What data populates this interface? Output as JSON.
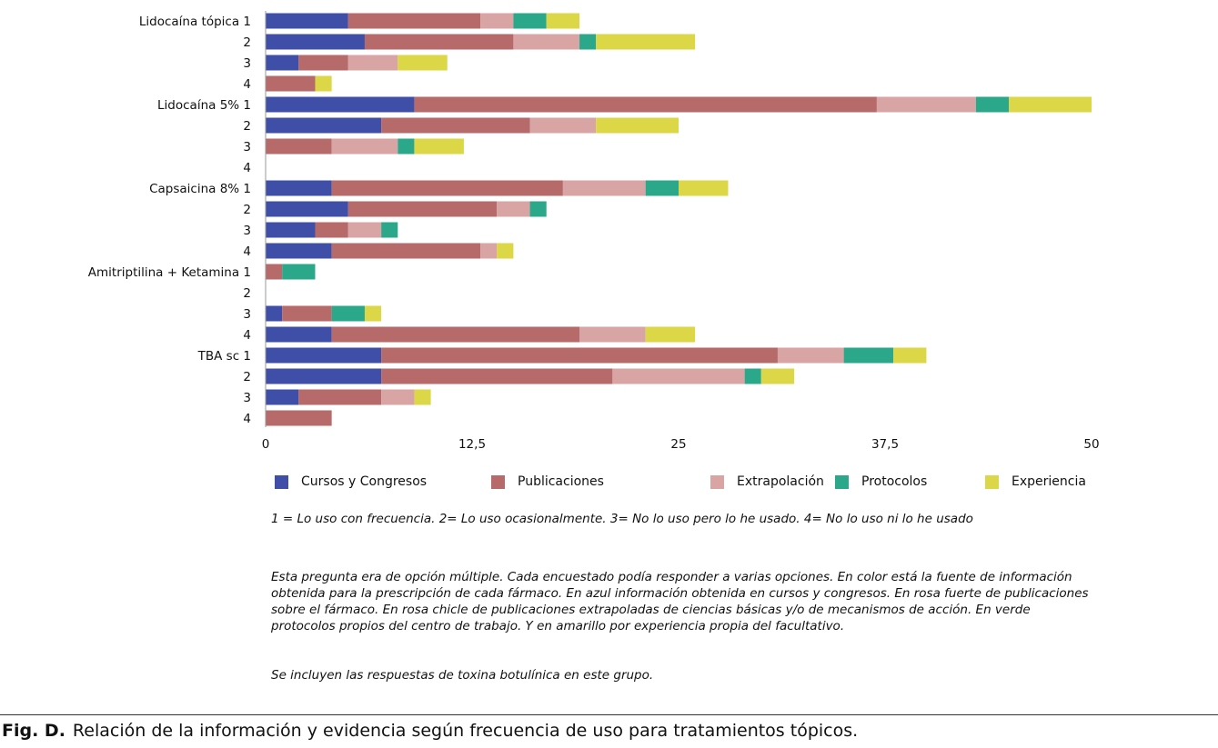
{
  "chart_data": {
    "type": "bar",
    "orientation": "horizontal",
    "stacked": true,
    "categories": [
      "Lidocaína tópica 1",
      "2",
      "3",
      "4",
      "Lidocaína 5% 1",
      "2",
      "3",
      "4",
      "Capsaicina 8% 1",
      "2",
      "3",
      "4",
      "Amitriptilina + Ketamina 1",
      "2",
      "3",
      "4",
      "TBA sc 1",
      "2",
      "3",
      "4"
    ],
    "series": [
      {
        "name": "Cursos y Congresos",
        "color": "#3f4fa8",
        "values": [
          5,
          6,
          2,
          0,
          9,
          7,
          0,
          0,
          4,
          5,
          3,
          4,
          0,
          0,
          1,
          4,
          7,
          7,
          2,
          0
        ]
      },
      {
        "name": "Publicaciones",
        "color": "#b66a6a",
        "values": [
          8,
          9,
          3,
          3,
          28,
          9,
          4,
          0,
          14,
          9,
          2,
          9,
          1,
          0,
          3,
          15,
          24,
          14,
          5,
          4
        ]
      },
      {
        "name": "Extrapolación",
        "color": "#d8a4a4",
        "values": [
          2,
          4,
          3,
          0,
          6,
          4,
          4,
          0,
          5,
          2,
          2,
          1,
          0,
          0,
          0,
          4,
          4,
          8,
          2,
          0
        ]
      },
      {
        "name": "Protocolos",
        "color": "#2ba88a",
        "values": [
          2,
          1,
          0,
          0,
          2,
          0,
          1,
          0,
          2,
          1,
          1,
          0,
          2,
          0,
          2,
          0,
          3,
          1,
          0,
          0
        ]
      },
      {
        "name": "Experiencia",
        "color": "#dbd746",
        "values": [
          2,
          6,
          3,
          1,
          5,
          5,
          3,
          0,
          3,
          0,
          0,
          1,
          0,
          0,
          1,
          3,
          2,
          2,
          1,
          0
        ]
      }
    ],
    "xlim": [
      0,
      50
    ],
    "xticks": [
      "0",
      "12,5",
      "25",
      "37,5",
      "50"
    ],
    "grid": false,
    "legend": "bottom"
  },
  "notes": {
    "scale": "1 = Lo uso con frecuencia. 2= Lo uso ocasionalmente. 3= No lo uso pero lo he usado. 4= No lo uso ni lo he usado",
    "description": "Esta pregunta era de opción múltiple. Cada encuestado podía responder a varias opciones. En color está la fuente de información obtenida para la prescripción de cada fármaco. En azul información obtenida en cursos y congresos. En rosa fuerte de publicaciones sobre el fármaco. En rosa chicle de publicaciones extrapoladas de ciencias básicas y/o de mecanismos de acción. En verde protocolos propios del centro de trabajo. Y en amarillo por experiencia propia del facultativo.",
    "extra": "Se incluyen las respuestas de toxina botulínica en este grupo."
  },
  "caption": {
    "label": "Fig. D.",
    "text": "Relación de la información y evidencia según frecuencia de uso para tratamientos tópicos."
  }
}
